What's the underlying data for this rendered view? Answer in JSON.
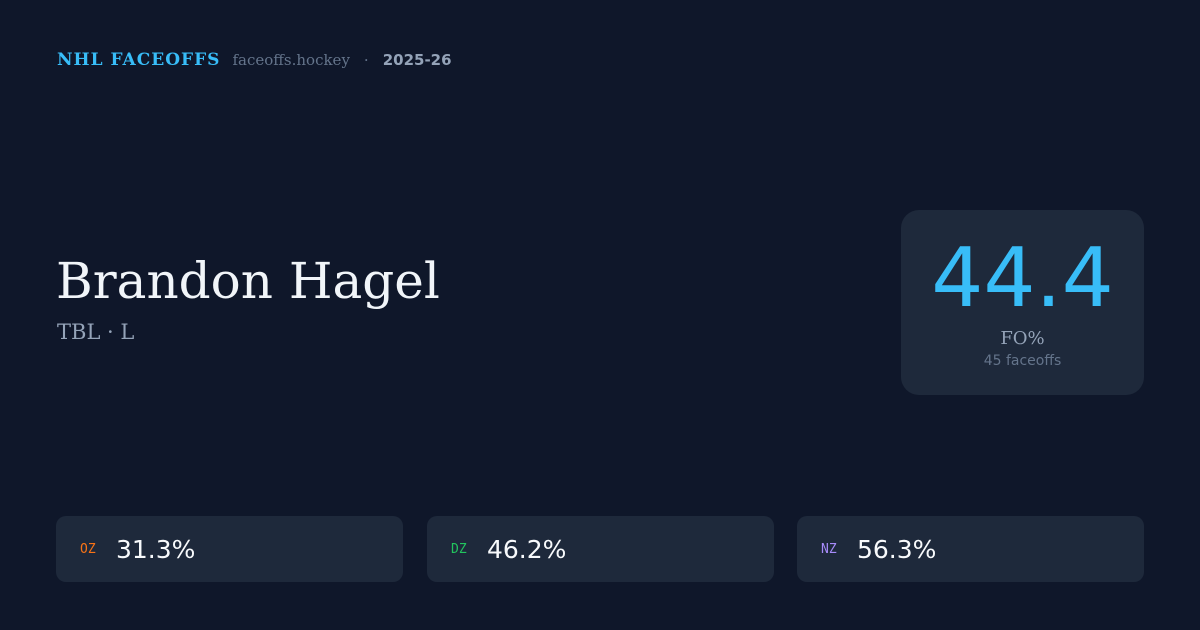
{
  "header": {
    "brand": "NHL FACEOFFS",
    "site": "faceoffs.hockey",
    "separator": "·",
    "season": "2025-26"
  },
  "player": {
    "name": "Brandon Hagel",
    "meta": "TBL · L"
  },
  "summary": {
    "fo_pct": "44.4",
    "label": "FO%",
    "faceoffs": "45 faceoffs"
  },
  "zones": [
    {
      "label": "OZ",
      "value": "31.3%",
      "color": "#f97316"
    },
    {
      "label": "DZ",
      "value": "46.2%",
      "color": "#22c55e"
    },
    {
      "label": "NZ",
      "value": "56.3%",
      "color": "#a78bfa"
    }
  ]
}
